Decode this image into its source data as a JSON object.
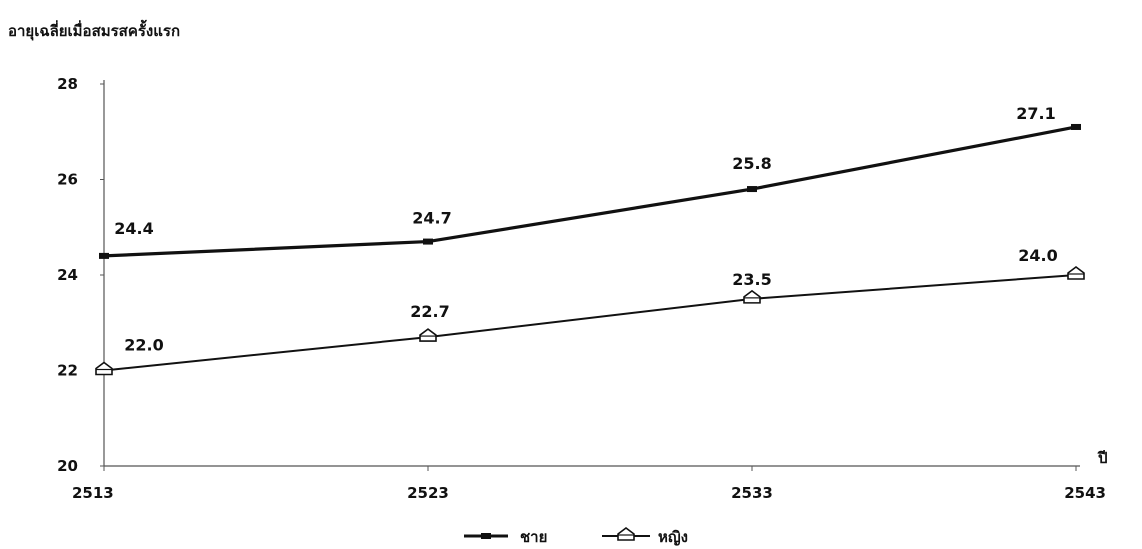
{
  "chart_data": {
    "type": "line",
    "ylabel": "อายุเฉลี่ยเมื่อสมรสครั้งแรก",
    "xlabel": "ปี",
    "categories": [
      "2513",
      "2523",
      "2533",
      "2543"
    ],
    "ylim": [
      20,
      28
    ],
    "yticks": [
      20,
      22,
      24,
      26,
      28
    ],
    "grid": false,
    "legend_position": "bottom-center",
    "series": [
      {
        "name": "ชาย",
        "marker": "filled-square",
        "values": [
          24.4,
          24.7,
          25.8,
          27.1
        ],
        "labels": [
          "24.4",
          "24.7",
          "25.8",
          "27.1"
        ]
      },
      {
        "name": "หญิง",
        "marker": "open-house",
        "values": [
          22.0,
          22.7,
          23.5,
          24.0
        ],
        "labels": [
          "22.0",
          "22.7",
          "23.5",
          "24.0"
        ]
      }
    ]
  }
}
